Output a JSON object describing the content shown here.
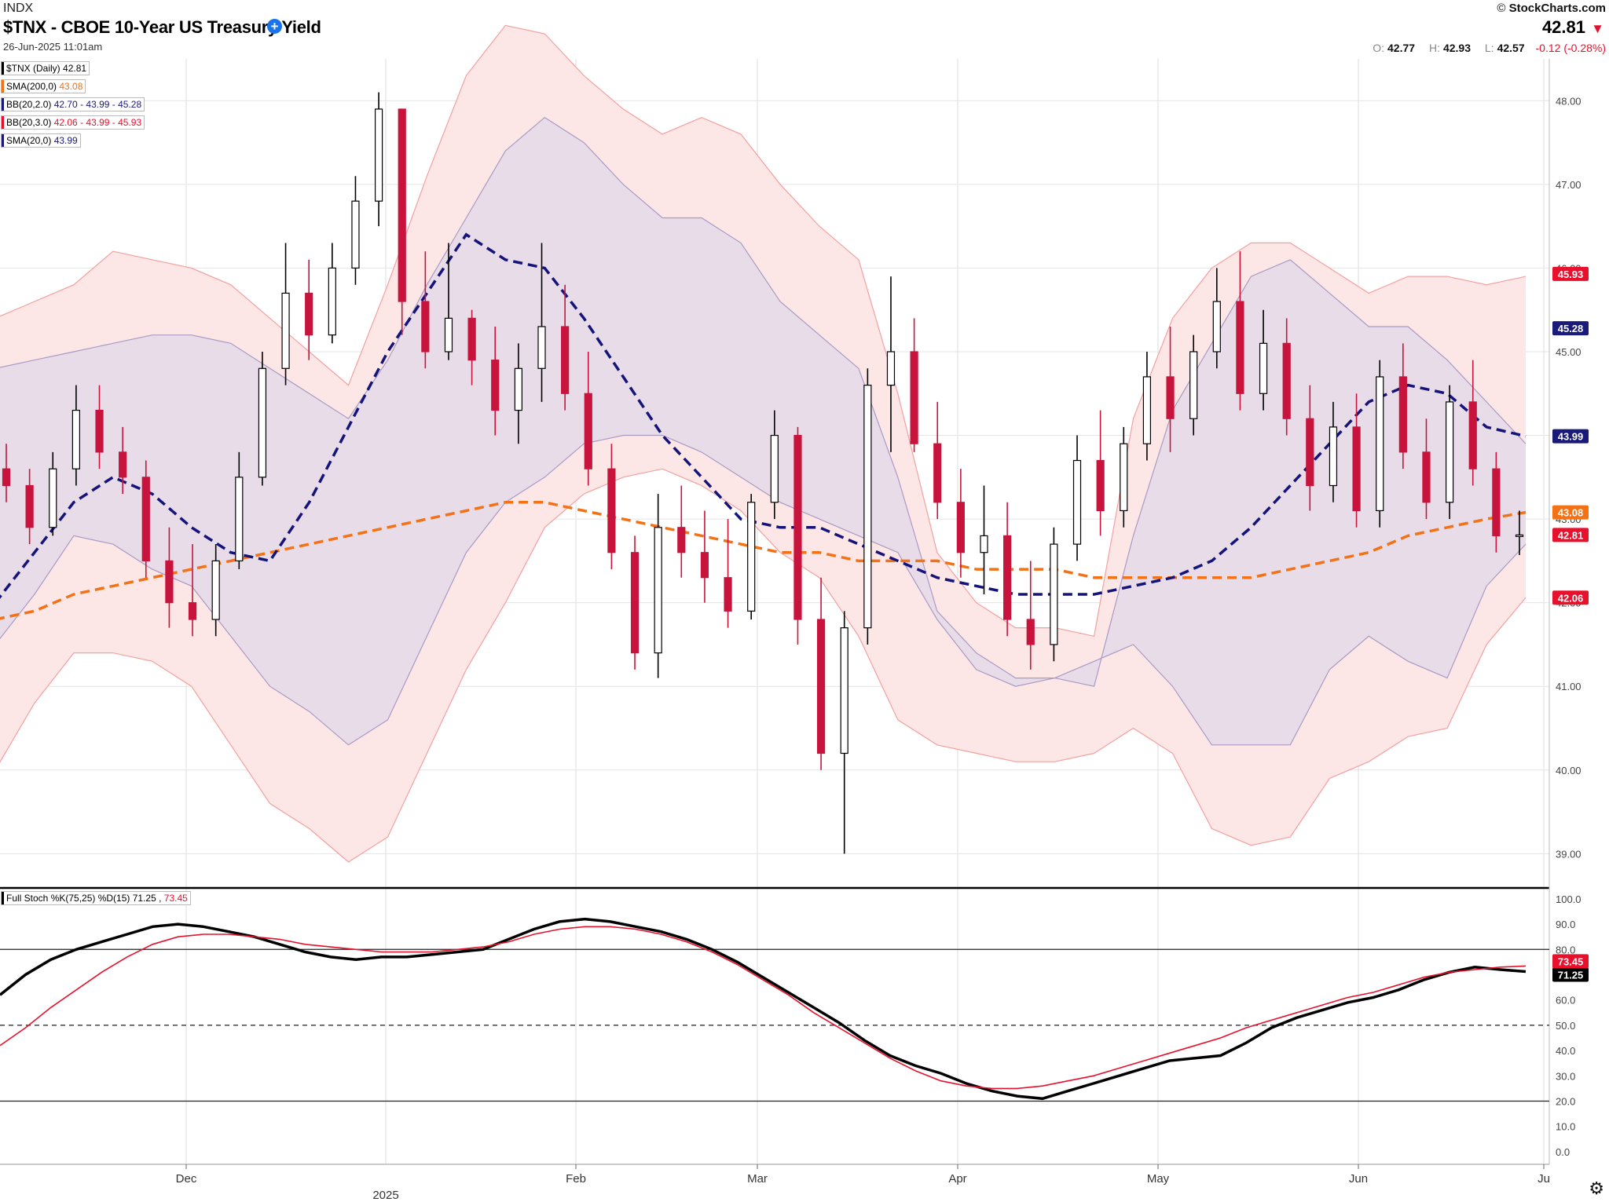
{
  "header": {
    "exchange": "INDX",
    "title": "$TNX - CBOE 10-Year US Treasury Yield",
    "add_icon": "plus-circle-icon",
    "date": "26-Jun-2025 11:01am",
    "brand_prefix": "©",
    "brand": "StockCharts.com",
    "last": "42.81",
    "last_direction_icon": "triangle-down-icon",
    "open_label": "O:",
    "open": "42.77",
    "high_label": "H:",
    "high": "42.93",
    "low_label": "L:",
    "low": "42.57",
    "change": "-0.12 (-0.28%)"
  },
  "legend": [
    {
      "label": "$TNX (Daily)",
      "value": "42.81",
      "color": "#000000"
    },
    {
      "label": "SMA(200,0)",
      "value": "43.08",
      "color": "#f47216"
    },
    {
      "label": "BB(20,2.0)",
      "value": "42.70 - 43.99 - 45.28",
      "color": "#1a1a7a"
    },
    {
      "label": "BB(20,3.0)",
      "value": "42.06 - 43.99 - 45.93",
      "color": "#e8112d"
    },
    {
      "label": "SMA(20,0)",
      "value": "43.99",
      "color": "#1a1a7a"
    }
  ],
  "stoch_legend": {
    "label": "Full Stoch %K(75,25) %D(15)",
    "k": "71.25",
    "d": "73.45"
  },
  "colors": {
    "down": "#c8143c",
    "up_fill": "#ffffff",
    "bb2_fill": "#e7dbe9",
    "bb3_fill": "#fde6e6",
    "sma200": "#f47216",
    "sma20": "#14147a",
    "k_line": "#000000",
    "d_line": "#e8112d"
  },
  "chart_data": [
    {
      "type": "candlestick",
      "title": "$TNX - CBOE 10-Year US Treasury Yield",
      "y_ticks": [
        "39.00",
        "40.00",
        "41.00",
        "42.00",
        "43.00",
        "44.00",
        "45.00",
        "46.00",
        "47.00",
        "48.00"
      ],
      "ylim": [
        38.6,
        48.5
      ],
      "x_ticks": [
        "Dec",
        "2025",
        "Feb",
        "Mar",
        "Apr",
        "May",
        "Jun",
        "Ju"
      ],
      "price_tags": [
        {
          "label": "45.93",
          "value": 45.93,
          "color": "#e8112d"
        },
        {
          "label": "45.28",
          "value": 45.28,
          "color": "#1a1a7a"
        },
        {
          "label": "43.99",
          "value": 43.99,
          "color": "#1a1a7a"
        },
        {
          "label": "43.08",
          "value": 43.08,
          "color": "#f47216"
        },
        {
          "label": "42.81",
          "value": 42.81,
          "color": "#e8112d"
        },
        {
          "label": "42.06",
          "value": 42.06,
          "color": "#e8112d"
        }
      ],
      "grid": true,
      "bb2_upper": [
        44.8,
        44.9,
        45.0,
        45.1,
        45.2,
        45.2,
        45.1,
        44.8,
        44.5,
        44.2,
        44.9,
        45.8,
        46.6,
        47.4,
        47.8,
        47.5,
        47.0,
        46.6,
        46.6,
        46.3,
        45.6,
        45.2,
        44.8,
        43.5,
        41.9,
        41.4,
        41.1,
        41.1,
        41.0,
        42.8,
        44.3,
        45.1,
        45.9,
        46.1,
        45.7,
        45.3,
        45.3,
        44.9,
        44.4,
        43.9
      ],
      "bb2_lower": [
        41.5,
        42.1,
        42.8,
        42.7,
        42.4,
        42.2,
        41.6,
        41.0,
        40.7,
        40.3,
        40.6,
        41.6,
        42.6,
        43.2,
        43.5,
        43.9,
        44.0,
        44.0,
        43.8,
        43.5,
        43.2,
        43.0,
        42.8,
        42.6,
        41.8,
        41.2,
        41.0,
        41.1,
        41.3,
        41.5,
        41.0,
        40.3,
        40.3,
        40.3,
        41.2,
        41.6,
        41.3,
        41.1,
        42.2,
        42.7
      ],
      "bb3_upper": [
        45.4,
        45.6,
        45.8,
        46.2,
        46.1,
        46.0,
        45.8,
        45.4,
        45.0,
        44.6,
        45.8,
        47.1,
        48.3,
        48.9,
        48.8,
        48.3,
        47.9,
        47.6,
        47.8,
        47.6,
        47.0,
        46.5,
        46.1,
        44.5,
        42.6,
        42.0,
        41.7,
        41.7,
        41.6,
        44.2,
        45.4,
        46.0,
        46.3,
        46.3,
        46.0,
        45.7,
        45.9,
        45.9,
        45.8,
        45.9
      ],
      "bb3_lower": [
        40.0,
        40.8,
        41.4,
        41.4,
        41.3,
        41.0,
        40.3,
        39.6,
        39.3,
        38.9,
        39.2,
        40.2,
        41.2,
        42.0,
        42.9,
        43.3,
        43.5,
        43.6,
        43.4,
        43.1,
        42.6,
        42.3,
        41.6,
        40.6,
        40.3,
        40.2,
        40.1,
        40.1,
        40.2,
        40.5,
        40.2,
        39.3,
        39.1,
        39.2,
        39.9,
        40.1,
        40.4,
        40.5,
        41.5,
        42.06
      ],
      "sma20": [
        42.0,
        42.6,
        43.2,
        43.5,
        43.3,
        42.9,
        42.6,
        42.5,
        43.2,
        44.1,
        45.0,
        45.7,
        46.4,
        46.1,
        46.0,
        45.4,
        44.7,
        44.0,
        43.5,
        43.0,
        42.9,
        42.9,
        42.7,
        42.5,
        42.3,
        42.2,
        42.1,
        42.1,
        42.1,
        42.2,
        42.3,
        42.5,
        42.9,
        43.4,
        43.9,
        44.4,
        44.6,
        44.5,
        44.1,
        43.99
      ],
      "sma200": [
        41.8,
        41.9,
        42.1,
        42.2,
        42.3,
        42.4,
        42.5,
        42.6,
        42.7,
        42.8,
        42.9,
        43.0,
        43.1,
        43.2,
        43.2,
        43.1,
        43.0,
        42.9,
        42.8,
        42.7,
        42.6,
        42.6,
        42.5,
        42.5,
        42.5,
        42.4,
        42.4,
        42.4,
        42.3,
        42.3,
        42.3,
        42.3,
        42.3,
        42.4,
        42.5,
        42.6,
        42.8,
        42.9,
        43.0,
        43.08
      ],
      "candles": [
        [
          43.6,
          43.9,
          43.2,
          43.4
        ],
        [
          43.4,
          43.6,
          42.7,
          42.9
        ],
        [
          42.9,
          43.8,
          42.8,
          43.6
        ],
        [
          43.6,
          44.6,
          43.4,
          44.3
        ],
        [
          44.3,
          44.6,
          43.6,
          43.8
        ],
        [
          43.8,
          44.1,
          43.3,
          43.5
        ],
        [
          43.5,
          43.7,
          42.3,
          42.5
        ],
        [
          42.5,
          42.9,
          41.7,
          42.0
        ],
        [
          42.0,
          42.7,
          41.6,
          41.8
        ],
        [
          41.8,
          42.7,
          41.6,
          42.5
        ],
        [
          42.5,
          43.8,
          42.4,
          43.5
        ],
        [
          43.5,
          45.0,
          43.4,
          44.8
        ],
        [
          44.8,
          46.3,
          44.6,
          45.7
        ],
        [
          45.7,
          46.1,
          44.9,
          45.2
        ],
        [
          45.2,
          46.3,
          45.1,
          46.0
        ],
        [
          46.0,
          47.1,
          45.8,
          46.8
        ],
        [
          46.8,
          48.1,
          46.5,
          47.9
        ],
        [
          47.9,
          47.9,
          45.2,
          45.6
        ],
        [
          45.6,
          46.2,
          44.8,
          45.0
        ],
        [
          45.0,
          46.3,
          44.9,
          45.4
        ],
        [
          45.4,
          45.5,
          44.6,
          44.9
        ],
        [
          44.9,
          45.3,
          44.0,
          44.3
        ],
        [
          44.3,
          45.1,
          43.9,
          44.8
        ],
        [
          44.8,
          46.3,
          44.4,
          45.3
        ],
        [
          45.3,
          45.8,
          44.3,
          44.5
        ],
        [
          44.5,
          45.0,
          43.4,
          43.6
        ],
        [
          43.6,
          43.9,
          42.4,
          42.6
        ],
        [
          42.6,
          42.8,
          41.2,
          41.4
        ],
        [
          41.4,
          43.3,
          41.1,
          42.9
        ],
        [
          42.9,
          43.4,
          42.3,
          42.6
        ],
        [
          42.6,
          43.1,
          42.0,
          42.3
        ],
        [
          42.3,
          43.0,
          41.7,
          41.9
        ],
        [
          41.9,
          43.3,
          41.8,
          43.2
        ],
        [
          43.2,
          44.3,
          43.0,
          44.0
        ],
        [
          44.0,
          44.1,
          41.5,
          41.8
        ],
        [
          41.8,
          42.3,
          40.0,
          40.2
        ],
        [
          40.2,
          41.9,
          39.0,
          41.7
        ],
        [
          41.7,
          44.8,
          41.5,
          44.6
        ],
        [
          44.6,
          45.9,
          43.8,
          45.0
        ],
        [
          45.0,
          45.4,
          43.8,
          43.9
        ],
        [
          43.9,
          44.4,
          43.0,
          43.2
        ],
        [
          43.2,
          43.6,
          42.3,
          42.6
        ],
        [
          42.6,
          43.4,
          42.1,
          42.8
        ],
        [
          42.8,
          43.2,
          41.6,
          41.8
        ],
        [
          41.8,
          42.5,
          41.2,
          41.5
        ],
        [
          41.5,
          42.9,
          41.3,
          42.7
        ],
        [
          42.7,
          44.0,
          42.5,
          43.7
        ],
        [
          43.7,
          44.3,
          42.8,
          43.1
        ],
        [
          43.1,
          44.1,
          42.9,
          43.9
        ],
        [
          43.9,
          45.0,
          43.7,
          44.7
        ],
        [
          44.7,
          45.3,
          43.8,
          44.2
        ],
        [
          44.2,
          45.2,
          44.0,
          45.0
        ],
        [
          45.0,
          46.0,
          44.8,
          45.6
        ],
        [
          45.6,
          46.2,
          44.3,
          44.5
        ],
        [
          44.5,
          45.5,
          44.3,
          45.1
        ],
        [
          45.1,
          45.4,
          44.0,
          44.2
        ],
        [
          44.2,
          44.6,
          43.1,
          43.4
        ],
        [
          43.4,
          44.4,
          43.2,
          44.1
        ],
        [
          44.1,
          44.5,
          42.9,
          43.1
        ],
        [
          43.1,
          44.9,
          42.9,
          44.7
        ],
        [
          44.7,
          45.1,
          43.6,
          43.8
        ],
        [
          43.8,
          44.2,
          43.0,
          43.2
        ],
        [
          43.2,
          44.6,
          43.0,
          44.4
        ],
        [
          44.4,
          44.9,
          43.4,
          43.6
        ],
        [
          43.6,
          43.8,
          42.6,
          42.8
        ],
        [
          42.8,
          43.1,
          42.57,
          42.81
        ]
      ]
    },
    {
      "type": "line",
      "title": "Full Stoch %K(75,25) %D(15)",
      "y_ticks": [
        "0.0",
        "10.0",
        "20.0",
        "30.0",
        "40.0",
        "50.0",
        "60.0",
        "70.0",
        "80.0",
        "90.0",
        "100.0"
      ],
      "ylim": [
        -5,
        104
      ],
      "reference_lines": [
        {
          "value": 80,
          "style": "solid"
        },
        {
          "value": 50,
          "style": "dashed"
        },
        {
          "value": 20,
          "style": "solid"
        }
      ],
      "tags": [
        {
          "label": "71.25",
          "value": 71.25,
          "color": "#000000"
        },
        {
          "label": "73.45",
          "value": 73.45,
          "color": "#e8112d"
        }
      ],
      "series": [
        {
          "name": "%K",
          "color": "#000000",
          "values": [
            62,
            70,
            76,
            80,
            83,
            86,
            89,
            90,
            89,
            87,
            85,
            82,
            79,
            77,
            76,
            77,
            77,
            78,
            79,
            80,
            84,
            88,
            91,
            92,
            91,
            89,
            87,
            84,
            80,
            75,
            69,
            63,
            57,
            51,
            44,
            38,
            34,
            31,
            27,
            24,
            22,
            21,
            24,
            27,
            30,
            33,
            36,
            37,
            38,
            43,
            49,
            53,
            56,
            59,
            61,
            64,
            68,
            71,
            73,
            72,
            71.25
          ]
        },
        {
          "name": "%D",
          "color": "#e8112d",
          "values": [
            42,
            49,
            57,
            64,
            71,
            77,
            82,
            85,
            86,
            86,
            85,
            84,
            82,
            81,
            80,
            79,
            79,
            79,
            80,
            81,
            83,
            86,
            88,
            89,
            89,
            88,
            86,
            83,
            79,
            74,
            68,
            62,
            55,
            49,
            43,
            37,
            32,
            28,
            26,
            25,
            25,
            26,
            28,
            30,
            33,
            36,
            39,
            42,
            45,
            49,
            52,
            55,
            58,
            61,
            63,
            66,
            69,
            71,
            72,
            73,
            73.45
          ]
        }
      ]
    }
  ]
}
